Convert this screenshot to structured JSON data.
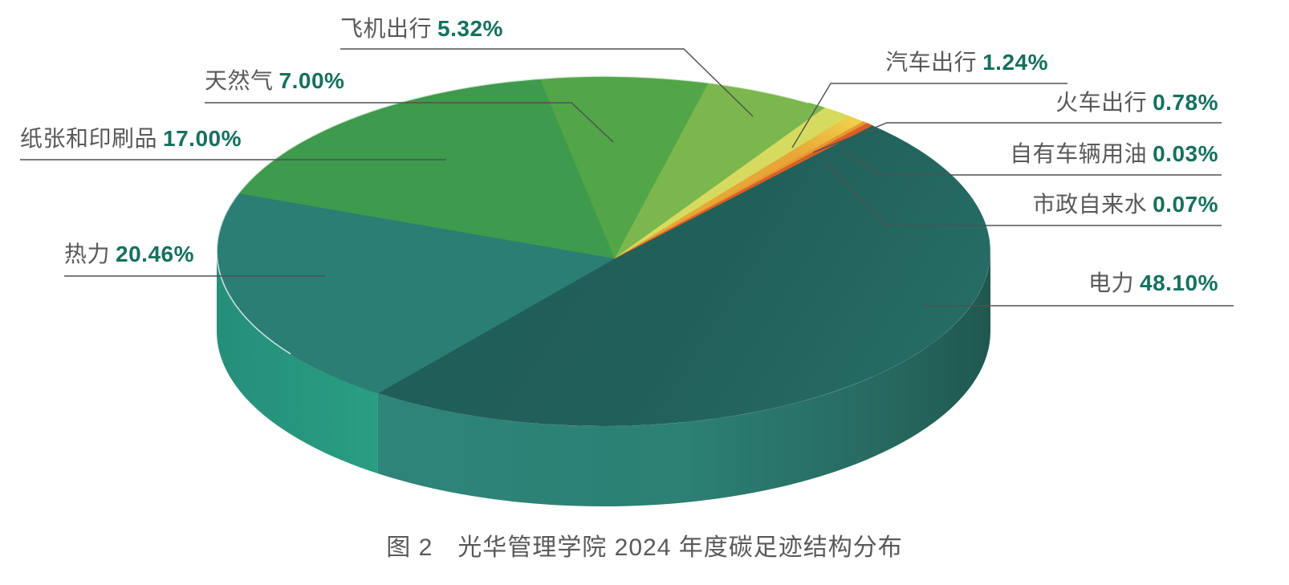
{
  "figure": {
    "caption": "图 2　光华管理学院 2024 年度碳足迹结构分布"
  },
  "chart_data": {
    "type": "pie",
    "style": "3d",
    "title": "光华管理学院 2024 年度碳足迹结构分布",
    "unit": "%",
    "total": 100,
    "legend_position": "callout-labels",
    "label_text_color": "#58595B",
    "label_value_color": "#15705F",
    "leader_line_color": "#4F5052",
    "background_color": "#FFFFFF",
    "items": [
      {
        "key": "electricity",
        "name": "电力",
        "value": 48.1,
        "pct": "48.10%",
        "color": "#1E615A",
        "side_color": "#2C8176"
      },
      {
        "key": "heat",
        "name": "热力",
        "value": 20.46,
        "pct": "20.46%",
        "color": "#2B7E73",
        "side_color": "#2BA084"
      },
      {
        "key": "paper-and-printing",
        "name": "纸张和印刷品",
        "value": 17.0,
        "pct": "17.00%",
        "color": "#3E9A4C"
      },
      {
        "key": "natural-gas",
        "name": "天然气",
        "value": 7.0,
        "pct": "7.00%",
        "color": "#52A648"
      },
      {
        "key": "air-travel",
        "name": "飞机出行",
        "value": 5.32,
        "pct": "5.32%",
        "color": "#7BB74D"
      },
      {
        "key": "car-travel",
        "name": "汽车出行",
        "value": 1.24,
        "pct": "1.24%",
        "color": "#D6DB5F"
      },
      {
        "key": "train-travel",
        "name": "火车出行",
        "value": 0.78,
        "pct": "0.78%",
        "color": "#EEC43E"
      },
      {
        "key": "own-vehicle-fuel",
        "name": "自有车辆用油",
        "value": 0.03,
        "pct": "0.03%",
        "color": "#E99632"
      },
      {
        "key": "municipal-tap-water",
        "name": "市政自来水",
        "value": 0.07,
        "pct": "0.07%",
        "color": "#D95F26"
      }
    ]
  }
}
